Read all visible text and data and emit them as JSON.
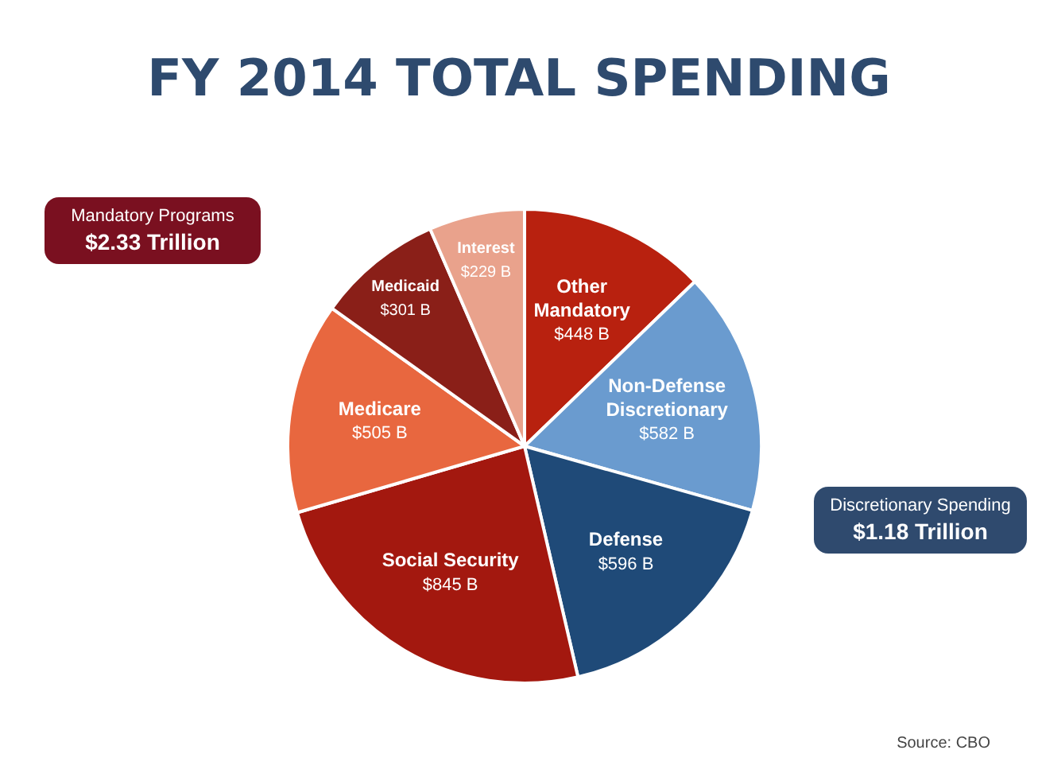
{
  "chart_data": {
    "type": "pie",
    "title": "FY 2014 TOTAL SPENDING",
    "categories": [
      "Other Mandatory",
      "Non-Defense Discretionary",
      "Defense",
      "Social Security",
      "Medicare",
      "Medicaid",
      "Interest"
    ],
    "values": [
      448,
      582,
      596,
      845,
      505,
      301,
      229
    ],
    "value_labels": [
      "$448 B",
      "$582 B",
      "$596 B",
      "$845 B",
      "$505 B",
      "$301 B",
      "$229 B"
    ],
    "colors": [
      "#b8210f",
      "#6a9bcf",
      "#1f4a78",
      "#a3180f",
      "#e8673f",
      "#8a1f18",
      "#e9a28c"
    ],
    "annotations": [
      "Mandatory Programs",
      "$2.33 Trillion",
      "Discretionary Spending",
      "$1.18 Trillion",
      "Source: CBO"
    ],
    "legend": false
  }
}
